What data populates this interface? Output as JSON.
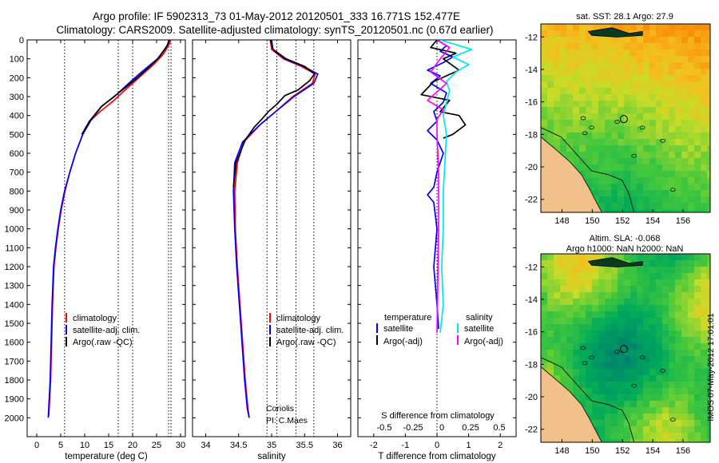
{
  "title": {
    "line1": "Argo profile: IF 5902313_73 01-May-2012 20120501_333 16.771S 152.477E",
    "line2": "Climatology: CARS2009. Satellite-adjusted climatology: synTS_20120501.nc (0.67d earlier)"
  },
  "colors": {
    "climatology": "#ff0000",
    "satellite": "#0000ff",
    "argo": "#000000",
    "sat_salinity": "#00e5ee",
    "argo_salinity": "#ff00ff",
    "land": "#f2c08a"
  },
  "chart_data": [
    {
      "type": "line",
      "name": "temperature",
      "xlabel": "temperature (deg C)",
      "ylabel": "",
      "xlim": [
        -2,
        31
      ],
      "ylim": [
        2100,
        0
      ],
      "xticks": [
        0,
        5,
        10,
        15,
        20,
        25,
        30
      ],
      "yticks": [
        0,
        100,
        200,
        300,
        400,
        500,
        600,
        700,
        800,
        900,
        1000,
        1100,
        1200,
        1300,
        1400,
        1500,
        1600,
        1700,
        1800,
        1900,
        2000
      ],
      "legend": [
        "climatology",
        "satellite-adj. clim.",
        "Argo(.raw -QC)"
      ],
      "series": [
        {
          "name": "climatology",
          "color": "#ff0000",
          "x": [
            28.0,
            27.6,
            26.4,
            24.6,
            22.4,
            20.2,
            18.0,
            15.9,
            13.4,
            11.3,
            9.6,
            8.1,
            6.9,
            5.9,
            5.1,
            4.5,
            4.0,
            3.6,
            3.3,
            3.1,
            2.9,
            2.7,
            2.5
          ],
          "y": [
            0,
            25,
            75,
            125,
            175,
            225,
            275,
            325,
            375,
            425,
            500,
            600,
            700,
            800,
            900,
            1000,
            1100,
            1200,
            1400,
            1600,
            1800,
            1900,
            1990
          ]
        },
        {
          "name": "satellite-adj. clim.",
          "color": "#0000ff",
          "x": [
            27.7,
            27.0,
            25.2,
            22.8,
            20.5,
            18.3,
            16.2,
            13.6,
            11.3,
            9.6,
            8.1,
            6.9,
            5.8,
            5.0,
            4.4,
            3.9,
            3.5,
            3.2,
            3.0,
            2.8,
            2.6,
            2.4
          ],
          "y": [
            0,
            40,
            100,
            150,
            200,
            250,
            300,
            350,
            425,
            500,
            600,
            700,
            800,
            900,
            1000,
            1100,
            1200,
            1400,
            1600,
            1800,
            1900,
            2000
          ]
        },
        {
          "name": "Argo(.raw -QC)",
          "color": "#000000",
          "x": [
            27.6,
            27.2,
            25.6,
            23.6,
            21.2,
            18.6,
            16.1,
            13.4,
            11.0,
            9.4
          ],
          "y": [
            0,
            30,
            90,
            140,
            195,
            250,
            300,
            355,
            430,
            500
          ]
        }
      ],
      "vlines": [
        5.8,
        17.0,
        20.0,
        27.5,
        28.0
      ]
    },
    {
      "type": "line",
      "name": "salinity",
      "xlabel": "salinity",
      "xlim": [
        33.8,
        36.2
      ],
      "ylim": [
        2100,
        0
      ],
      "xticks": [
        34,
        34.5,
        35,
        35.5,
        36
      ],
      "legend": [
        "climatology",
        "satellite-adj. clim.",
        "Argo(.raw -QC)"
      ],
      "annotation": [
        "Coriolis",
        "PI: C.Maes"
      ],
      "series": [
        {
          "name": "climatology",
          "color": "#ff0000",
          "x": [
            34.98,
            35.0,
            35.18,
            35.45,
            35.66,
            35.62,
            35.32,
            35.06,
            34.82,
            34.58,
            34.48,
            34.44,
            34.45,
            34.48,
            34.52,
            34.56,
            34.6,
            34.64,
            34.66
          ],
          "y": [
            0,
            50,
            100,
            140,
            180,
            230,
            300,
            380,
            450,
            540,
            650,
            800,
            1000,
            1200,
            1400,
            1600,
            1800,
            1950,
            2000
          ]
        },
        {
          "name": "satellite-adj. clim.",
          "color": "#0000ff",
          "x": [
            35.0,
            35.02,
            35.2,
            35.48,
            35.7,
            35.64,
            35.34,
            35.06,
            34.82,
            34.56,
            34.44,
            34.42,
            34.44,
            34.47,
            34.51,
            34.55,
            34.59,
            34.63,
            34.66
          ],
          "y": [
            0,
            50,
            100,
            140,
            180,
            230,
            300,
            380,
            450,
            540,
            650,
            800,
            1000,
            1200,
            1400,
            1600,
            1800,
            1950,
            2000
          ]
        },
        {
          "name": "Argo(.raw -QC)",
          "color": "#000000",
          "x": [
            34.98,
            35.02,
            35.22,
            35.5,
            35.65,
            35.58,
            35.4,
            35.2,
            35.08,
            34.95,
            34.85,
            34.74,
            34.6,
            34.46,
            34.42
          ],
          "y": [
            0,
            50,
            100,
            140,
            180,
            215,
            265,
            295,
            340,
            380,
            420,
            460,
            530,
            650,
            780
          ]
        }
      ],
      "vlines": [
        34.93,
        35.08,
        35.37,
        35.64
      ]
    },
    {
      "type": "line",
      "name": "difference",
      "xlabel": "T difference from climatology",
      "xlabel_top": "S difference from climatology",
      "xlim": [
        -2.5,
        2.5
      ],
      "ylim": [
        2100,
        0
      ],
      "xticks": [
        -2,
        -1,
        0,
        1,
        2
      ],
      "xtick_labels_top": [
        "-0.5",
        "-0.25",
        "0",
        "0.25",
        "0.5"
      ],
      "legend": {
        "temperature": [
          "satellite",
          "Argo(-adj)"
        ],
        "salinity": [
          "satellite",
          "Argo(-adj)"
        ]
      },
      "legend_headers": [
        "temperature",
        "salinity"
      ],
      "series": [
        {
          "name": "temperature satellite",
          "color": "#0000ff",
          "x": [
            0.0,
            0.3,
            0.1,
            0.5,
            0.2,
            -0.3,
            0.1,
            -0.2,
            0.3,
            0.2,
            -0.1,
            0.0,
            -0.3,
            0.0,
            0.2,
            0.0,
            -0.1,
            -0.3,
            -0.1,
            0.0,
            -0.1,
            0.0,
            0.05
          ],
          "y": [
            0,
            30,
            60,
            90,
            120,
            160,
            190,
            230,
            280,
            330,
            380,
            430,
            480,
            530,
            600,
            700,
            780,
            820,
            860,
            1000,
            1200,
            1400,
            1530
          ]
        },
        {
          "name": "temperature Argo(-adj)",
          "color": "#000000",
          "x": [
            0.0,
            -0.2,
            0.6,
            0.2,
            0.7,
            -0.1,
            -0.5,
            0.4,
            0.1,
            0.7,
            0.9,
            0.5,
            0.2
          ],
          "y": [
            0,
            40,
            70,
            100,
            160,
            220,
            290,
            320,
            380,
            400,
            450,
            500,
            520
          ]
        },
        {
          "name": "salinity satellite",
          "color": "#00e5ee",
          "x": [
            0.1,
            1.1,
            0.5,
            1.0,
            0.6,
            0.3,
            0.4,
            0.3,
            0.2,
            0.3,
            0.25,
            0.2,
            0.2,
            0.15,
            0.2,
            0.1
          ],
          "y": [
            0,
            50,
            90,
            130,
            170,
            220,
            270,
            330,
            400,
            500,
            650,
            800,
            1000,
            1200,
            1400,
            1550
          ]
        },
        {
          "name": "salinity Argo(-adj)",
          "color": "#ff00ff",
          "x": [
            0.0,
            0.4,
            0.1,
            -0.2,
            0.3,
            -0.3,
            0.2,
            0.0,
            0.0,
            0.05,
            0.05,
            0.0
          ],
          "y": [
            0,
            40,
            100,
            170,
            230,
            320,
            370,
            420,
            500,
            700,
            1000,
            1550
          ]
        }
      ]
    },
    {
      "type": "heatmap",
      "name": "sst-map",
      "title": "sat. SST: 28.1 Argo: 27.9",
      "xticks": [
        148,
        150,
        152,
        154,
        156
      ],
      "yticks": [
        -12,
        -14,
        -16,
        -18,
        -20,
        -22
      ],
      "marker": [
        152.5,
        -16.8
      ]
    },
    {
      "type": "heatmap",
      "name": "sla-map",
      "title_lines": [
        "Altim. SLA: -0.068",
        "Argo h1000: NaN h2000: NaN"
      ],
      "xticks": [
        148,
        150,
        152,
        154,
        156
      ],
      "yticks": [
        -12,
        -14,
        -16,
        -18,
        -20,
        -22
      ],
      "marker": [
        152.5,
        -16.8
      ]
    }
  ],
  "side_label": "IMOS 07-May-2012 17:01:01"
}
